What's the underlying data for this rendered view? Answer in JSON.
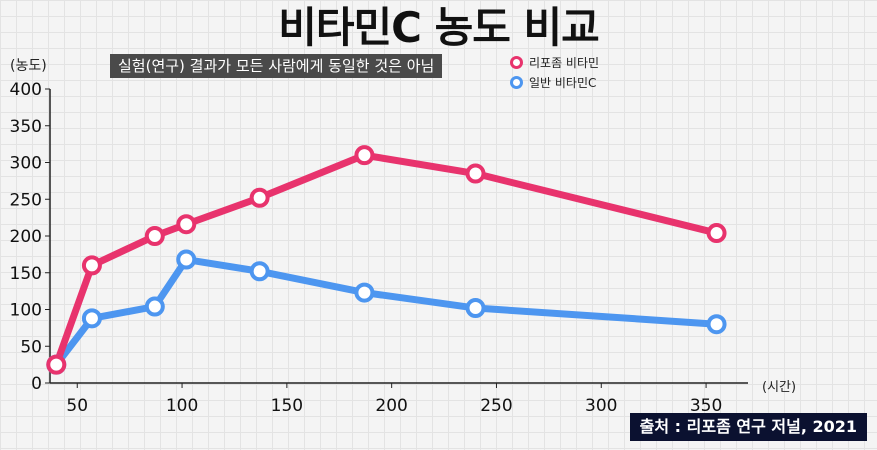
{
  "header": {
    "title": "비타민C 농도 비교",
    "subtitle": "실험(연구) 결과가 모든 사람에게 동일한 것은 아님"
  },
  "source": "출처 : 리포좀 연구 저널, 2021",
  "chart_data": {
    "type": "line",
    "ylabel": "(농도)",
    "xlabel": "(시간)",
    "xlim": [
      37,
      370
    ],
    "ylim": [
      0,
      400
    ],
    "x_ticks": [
      50,
      100,
      150,
      200,
      250,
      300,
      350
    ],
    "y_ticks": [
      0,
      50,
      100,
      150,
      200,
      250,
      300,
      350,
      400
    ],
    "legend_position": "top-right",
    "series": [
      {
        "name": "리포좀 비타민",
        "color": "#e8336d",
        "x": [
          40,
          57,
          87,
          102,
          137,
          187,
          240,
          355
        ],
        "y": [
          25,
          160,
          200,
          216,
          252,
          310,
          285,
          204
        ]
      },
      {
        "name": "일반 비타민C",
        "color": "#4d96f0",
        "x": [
          40,
          57,
          87,
          102,
          137,
          187,
          240,
          355
        ],
        "y": [
          25,
          88,
          104,
          168,
          152,
          123,
          102,
          80
        ]
      }
    ]
  }
}
